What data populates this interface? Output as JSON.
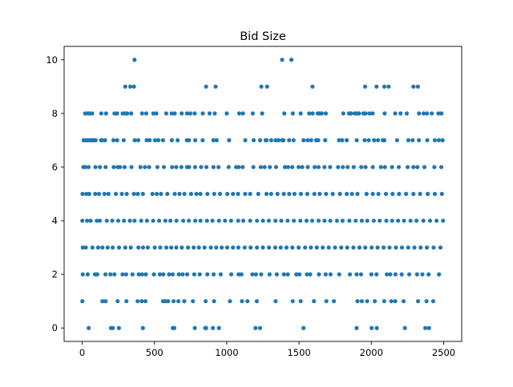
{
  "chart_data": {
    "type": "scatter",
    "title": "Bid Size",
    "xlabel": "",
    "ylabel": "",
    "xlim": [
      -125,
      2625
    ],
    "ylim": [
      -0.5,
      10.5
    ],
    "xticks": [
      0,
      500,
      1000,
      1500,
      2000,
      2500
    ],
    "yticks": [
      0,
      2,
      4,
      6,
      8,
      10
    ],
    "grid": false,
    "marker_color": "#1f77b4",
    "series": [
      {
        "values_by_level": [
          {
            "y": 10,
            "x": [
              362,
              1383,
              1447
            ]
          },
          {
            "y": 9,
            "x": [
              298,
              333,
              358,
              857,
              923,
              1239,
              1279,
              1593,
              1957,
              2036,
              2090,
              2120,
              2291,
              2322
            ]
          },
          {
            "y": 8,
            "x": [
              20,
              38,
              50,
              69,
              132,
              165,
              223,
              241,
              280,
              298,
              312,
              339,
              414,
              443,
              492,
              513,
              581,
              619,
              640,
              688,
              725,
              748,
              778,
              834,
              881,
              917,
              1000,
              1086,
              1112,
              1180,
              1245,
              1398,
              1457,
              1511,
              1570,
              1594,
              1629,
              1642,
              1657,
              1685,
              1806,
              1846,
              1860,
              1886,
              1901,
              1915,
              1945,
              1961,
              1988,
              2009,
              2092,
              2165,
              2202,
              2245,
              2330,
              2362,
              2385,
              2418,
              2464,
              2485
            ]
          },
          {
            "y": 7,
            "x": [
              10,
              20,
              33,
              49,
              63,
              71,
              79,
              93,
              131,
              137,
              158,
              216,
              242,
              287,
              363,
              387,
              446,
              467,
              504,
              527,
              559,
              620,
              660,
              724,
              739,
              782,
              833,
              907,
              930,
              1016,
              1128,
              1186,
              1231,
              1269,
              1275,
              1307,
              1338,
              1358,
              1384,
              1392,
              1431,
              1462,
              1531,
              1559,
              1584,
              1618,
              1633,
              1681,
              1776,
              1798,
              1830,
              1899,
              1954,
              1982,
              2019,
              2046,
              2079,
              2090,
              2178,
              2256,
              2286,
              2329,
              2387,
              2439,
              2467,
              2493
            ]
          },
          {
            "y": 6,
            "x": [
              8,
              22,
              44,
              92,
              123,
              162,
              218,
              246,
              262,
              293,
              341,
              403,
              434,
              463,
              520,
              565,
              622,
              651,
              686,
              725,
              740,
              781,
              822,
              859,
              908,
              943,
              1013,
              1065,
              1082,
              1110,
              1184,
              1235,
              1262,
              1298,
              1341,
              1402,
              1424,
              1453,
              1497,
              1522,
              1560,
              1608,
              1635,
              1676,
              1715,
              1770,
              1803,
              1836,
              1878,
              1930,
              1960,
              2010,
              2066,
              2094,
              2143,
              2190,
              2251,
              2291,
              2319,
              2367,
              2436,
              2484
            ]
          },
          {
            "y": 5,
            "x": [
              2,
              29,
              49,
              90,
              116,
              154,
              182,
              233,
              274,
              308,
              358,
              385,
              420,
              486,
              516,
              545,
              589,
              640,
              673,
              707,
              753,
              790,
              818,
              866,
              913,
              953,
              1004,
              1043,
              1078,
              1127,
              1162,
              1218,
              1275,
              1307,
              1351,
              1394,
              1432,
              1468,
              1513,
              1557,
              1606,
              1643,
              1687,
              1733,
              1783,
              1830,
              1866,
              1904,
              1967,
              2010,
              2049,
              2101,
              2147,
              2192,
              2240,
              2291,
              2337,
              2390,
              2439,
              2488
            ]
          },
          {
            "y": 4,
            "x": [
              1,
              34,
              58,
              101,
              122,
              170,
              208,
              249,
              289,
              330,
              362,
              408,
              448,
              491,
              532,
              575,
              610,
              652,
              699,
              738,
              782,
              818,
              863,
              901,
              946,
              988,
              1030,
              1079,
              1114,
              1162,
              1209,
              1250,
              1291,
              1337,
              1377,
              1421,
              1464,
              1509,
              1552,
              1591,
              1635,
              1676,
              1716,
              1762,
              1801,
              1848,
              1892,
              1934,
              1972,
              2017,
              2058,
              2104,
              2144,
              2185,
              2226,
              2271,
              2312,
              2360,
              2406,
              2451,
              2496
            ]
          },
          {
            "y": 3,
            "x": [
              4,
              25,
              71,
              110,
              140,
              176,
              211,
              255,
              298,
              336,
              389,
              421,
              454,
              502,
              540,
              582,
              616,
              651,
              689,
              732,
              771,
              807,
              846,
              890,
              927,
              965,
              1003,
              1043,
              1080,
              1124,
              1165,
              1209,
              1250,
              1292,
              1335,
              1373,
              1413,
              1454,
              1497,
              1542,
              1582,
              1623,
              1664,
              1705,
              1749,
              1792,
              1833,
              1876,
              1918,
              1958,
              2002,
              2043,
              2085,
              2126,
              2170,
              2212,
              2255,
              2298,
              2341,
              2384,
              2431,
              2478
            ]
          },
          {
            "y": 2,
            "x": [
              4,
              38,
              88,
              104,
              161,
              195,
              223,
              279,
              304,
              348,
              391,
              414,
              440,
              496,
              537,
              561,
              601,
              626,
              668,
              695,
              726,
              775,
              813,
              866,
              909,
              958,
              1031,
              1082,
              1102,
              1177,
              1202,
              1238,
              1296,
              1346,
              1395,
              1422,
              1481,
              1503,
              1554,
              1577,
              1638,
              1684,
              1718,
              1778,
              1852,
              1898,
              1929,
              2000,
              2036,
              2107,
              2131,
              2167,
              2210,
              2262,
              2316,
              2353,
              2396,
              2468
            ]
          },
          {
            "y": 1,
            "x": [
              1,
              140,
              162,
              245,
              306,
              383,
              412,
              437,
              559,
              576,
              594,
              632,
              665,
              706,
              766,
              854,
              912,
              1022,
              1105,
              1143,
              1208,
              1338,
              1456,
              1511,
              1603,
              1689,
              1741,
              1904,
              1934,
              1971,
              2024,
              2089,
              2138,
              2165,
              2223,
              2323,
              2382,
              2428
            ]
          },
          {
            "y": 0,
            "x": [
              45,
              199,
              212,
              254,
              420,
              627,
              637,
              779,
              851,
              857,
              904,
              946,
              1199,
              1230,
              1531,
              1898,
              2002,
              2038,
              2232,
              2373,
              2399
            ]
          }
        ]
      }
    ]
  }
}
